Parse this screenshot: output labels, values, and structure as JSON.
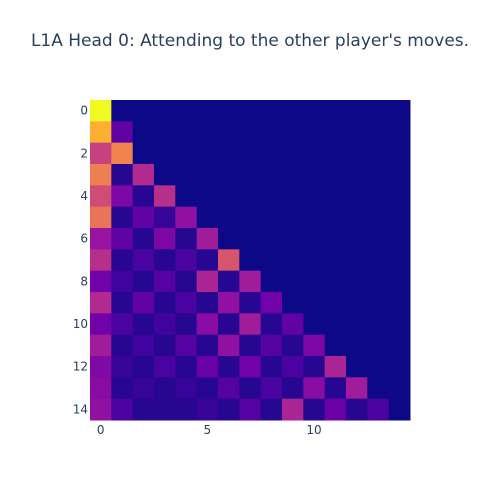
{
  "chart_data": {
    "type": "heatmap",
    "title": "L1A Head 0: Attending to the other player's moves.",
    "x_ticks": [
      "0",
      "5",
      "10"
    ],
    "y_ticks": [
      "0",
      "2",
      "4",
      "6",
      "8",
      "10",
      "12",
      "14"
    ],
    "x_tick_values": [
      0,
      5,
      10
    ],
    "y_tick_values": [
      0,
      2,
      4,
      6,
      8,
      10,
      12,
      14
    ],
    "rows": 15,
    "cols": 15,
    "zmin": 0,
    "zmax": 1,
    "colorscale": "plasma",
    "z": [
      [
        1.0,
        0.0,
        0.0,
        0.0,
        0.0,
        0.0,
        0.0,
        0.0,
        0.0,
        0.0,
        0.0,
        0.0,
        0.0,
        0.0,
        0.0
      ],
      [
        0.82,
        0.18,
        0.0,
        0.0,
        0.0,
        0.0,
        0.0,
        0.0,
        0.0,
        0.0,
        0.0,
        0.0,
        0.0,
        0.0,
        0.0
      ],
      [
        0.48,
        0.7,
        0.0,
        0.0,
        0.0,
        0.0,
        0.0,
        0.0,
        0.0,
        0.0,
        0.0,
        0.0,
        0.0,
        0.0,
        0.0
      ],
      [
        0.68,
        0.05,
        0.4,
        0.0,
        0.0,
        0.0,
        0.0,
        0.0,
        0.0,
        0.0,
        0.0,
        0.0,
        0.0,
        0.0,
        0.0
      ],
      [
        0.52,
        0.25,
        0.05,
        0.42,
        0.0,
        0.0,
        0.0,
        0.0,
        0.0,
        0.0,
        0.0,
        0.0,
        0.0,
        0.0,
        0.0
      ],
      [
        0.65,
        0.05,
        0.18,
        0.08,
        0.3,
        0.0,
        0.0,
        0.0,
        0.0,
        0.0,
        0.0,
        0.0,
        0.0,
        0.0,
        0.0
      ],
      [
        0.32,
        0.18,
        0.05,
        0.25,
        0.05,
        0.35,
        0.0,
        0.0,
        0.0,
        0.0,
        0.0,
        0.0,
        0.0,
        0.0,
        0.0
      ],
      [
        0.42,
        0.05,
        0.12,
        0.05,
        0.12,
        0.05,
        0.55,
        0.0,
        0.0,
        0.0,
        0.0,
        0.0,
        0.0,
        0.0,
        0.0
      ],
      [
        0.22,
        0.1,
        0.05,
        0.15,
        0.05,
        0.38,
        0.05,
        0.35,
        0.0,
        0.0,
        0.0,
        0.0,
        0.0,
        0.0,
        0.0
      ],
      [
        0.4,
        0.05,
        0.18,
        0.05,
        0.12,
        0.05,
        0.3,
        0.05,
        0.22,
        0.0,
        0.0,
        0.0,
        0.0,
        0.0,
        0.0
      ],
      [
        0.22,
        0.12,
        0.05,
        0.1,
        0.05,
        0.28,
        0.05,
        0.35,
        0.05,
        0.18,
        0.0,
        0.0,
        0.0,
        0.0,
        0.0
      ],
      [
        0.35,
        0.05,
        0.1,
        0.05,
        0.15,
        0.05,
        0.3,
        0.05,
        0.15,
        0.05,
        0.25,
        0.0,
        0.0,
        0.0,
        0.0
      ],
      [
        0.26,
        0.08,
        0.05,
        0.12,
        0.05,
        0.2,
        0.05,
        0.22,
        0.05,
        0.12,
        0.05,
        0.38,
        0.0,
        0.0,
        0.0
      ],
      [
        0.28,
        0.05,
        0.08,
        0.05,
        0.08,
        0.05,
        0.15,
        0.05,
        0.12,
        0.05,
        0.28,
        0.05,
        0.35,
        0.0,
        0.0
      ],
      [
        0.3,
        0.12,
        0.05,
        0.05,
        0.05,
        0.08,
        0.05,
        0.15,
        0.05,
        0.38,
        0.05,
        0.2,
        0.05,
        0.12,
        0.0
      ]
    ]
  }
}
